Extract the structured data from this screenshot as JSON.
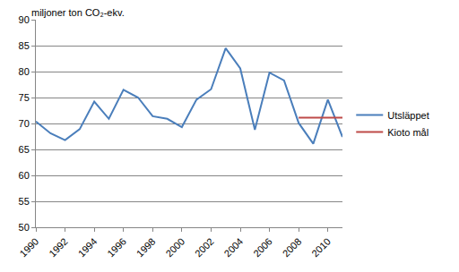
{
  "chart_data": {
    "type": "line",
    "ylabel": "miljoner ton CO₂-ekv.",
    "x": [
      1990,
      1991,
      1992,
      1993,
      1994,
      1995,
      1996,
      1997,
      1998,
      1999,
      2000,
      2001,
      2002,
      2003,
      2004,
      2005,
      2006,
      2007,
      2008,
      2009,
      2010,
      2011
    ],
    "series": [
      {
        "name": "Utsläppet",
        "color": "#4a7ebb",
        "values": [
          70.4,
          68.1,
          66.8,
          68.9,
          74.2,
          70.9,
          76.5,
          75.0,
          71.4,
          70.9,
          69.3,
          74.6,
          76.6,
          84.5,
          80.6,
          68.8,
          79.8,
          78.3,
          70.1,
          66.1,
          74.6,
          67.4
        ]
      },
      {
        "name": "Kioto mål",
        "color": "#be4b48",
        "values": [
          null,
          null,
          null,
          null,
          null,
          null,
          null,
          null,
          null,
          null,
          null,
          null,
          null,
          null,
          null,
          null,
          null,
          null,
          71.1,
          71.1,
          71.1,
          71.1
        ]
      }
    ],
    "xlim": [
      1990,
      2011
    ],
    "xticks": [
      1990,
      1992,
      1994,
      1996,
      1998,
      2000,
      2002,
      2004,
      2006,
      2008,
      2010
    ],
    "ylim": [
      50,
      90
    ],
    "yticks": [
      50,
      55,
      60,
      65,
      70,
      75,
      80,
      85,
      90
    ],
    "grid": true,
    "legend": "right"
  }
}
